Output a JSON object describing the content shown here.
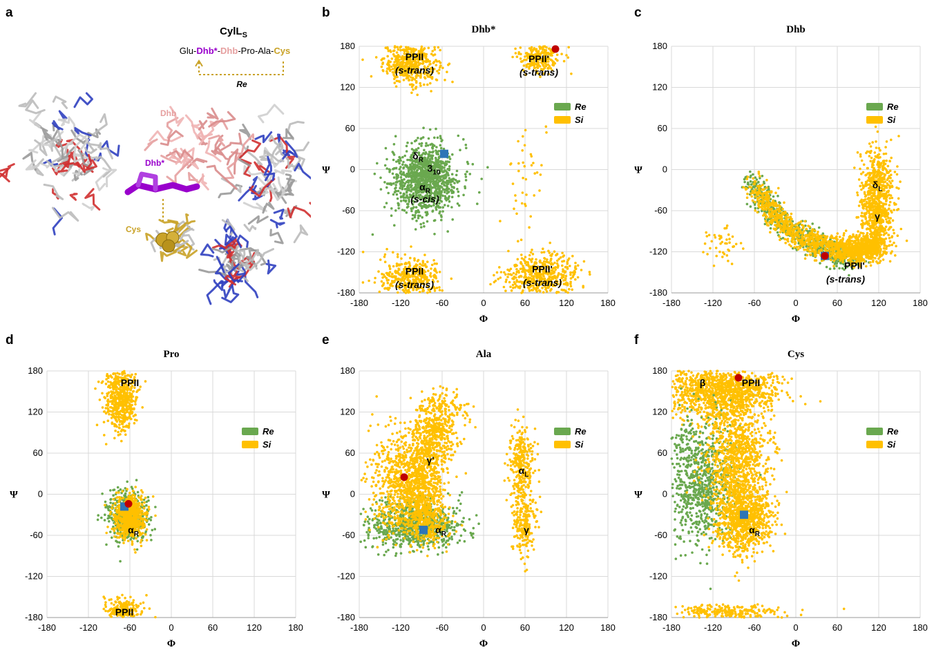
{
  "colors": {
    "re": "#6aa84f",
    "si": "#ffc000",
    "blue": "#2e75b6",
    "red": "#c00000",
    "grid": "#d9d9d9",
    "dhb_star": "#9900cc",
    "dhb": "#e6a0a0",
    "cys": "#c9a227"
  },
  "panel_a": {
    "letter": "a",
    "title": "CylL",
    "title_sub": "S",
    "seq_1": "Glu-",
    "seq_2": "Dhb*",
    "seq_3": "-",
    "seq_4": "Dhb",
    "seq_5": "-Pro-Ala-",
    "seq_6": "Cys",
    "re_label": "Re",
    "label_dhb": "Dhb",
    "label_dhb_star": "Dhb*",
    "label_cys": "Cys"
  },
  "chart_data": [
    {
      "id": "b",
      "letter": "b",
      "type": "scatter",
      "title": "Dhb*",
      "xlabel": "Φ",
      "ylabel": "Ψ",
      "xlim": [
        -180,
        180
      ],
      "ylim": [
        -180,
        180
      ],
      "ticks": [
        -180,
        -120,
        -60,
        0,
        60,
        120,
        180
      ],
      "grid": true,
      "legend": [
        {
          "name": "Re",
          "color": "#6aa84f"
        },
        {
          "name": "Si",
          "color": "#ffc000"
        }
      ],
      "legend_position": "right",
      "clusters": [
        {
          "series": "Si",
          "cx": -105,
          "cy": 155,
          "sx": 20,
          "sy": 15,
          "n": 450
        },
        {
          "series": "Si",
          "cx": 80,
          "cy": 165,
          "sx": 16,
          "sy": 12,
          "n": 230
        },
        {
          "series": "Si",
          "cx": -105,
          "cy": -160,
          "sx": 22,
          "sy": 15,
          "n": 380
        },
        {
          "series": "Si",
          "cx": 85,
          "cy": -155,
          "sx": 28,
          "sy": 16,
          "n": 480
        },
        {
          "series": "Si",
          "cx": 60,
          "cy": -10,
          "sx": 15,
          "sy": 45,
          "n": 40
        },
        {
          "series": "Re",
          "cx": -85,
          "cy": -15,
          "sx": 24,
          "sy": 26,
          "n": 1100
        }
      ],
      "markers": [
        {
          "shape": "square",
          "x": -57,
          "y": 23
        },
        {
          "shape": "circle",
          "x": 104,
          "y": 176
        }
      ],
      "labels": [
        {
          "text": "PPII",
          "x": -100,
          "y": 165
        },
        {
          "text": "(s-trans)",
          "x": -100,
          "y": 145,
          "italic": true
        },
        {
          "text": "PPII'",
          "x": 80,
          "y": 162
        },
        {
          "text": "(s-trans)",
          "x": 80,
          "y": 142,
          "italic": true
        },
        {
          "text": "δ",
          "sub": "R",
          "x": -95,
          "y": 20
        },
        {
          "text": "3",
          "sub": "10",
          "x": -72,
          "y": 2,
          "serif": true
        },
        {
          "text": "α",
          "sub": "R",
          "x": -85,
          "y": -25
        },
        {
          "text": "(s-cis)",
          "x": -85,
          "y": -43,
          "italic": true
        },
        {
          "text": "PPII",
          "x": -100,
          "y": -148
        },
        {
          "text": "(s-trans)",
          "x": -100,
          "y": -168,
          "italic": true
        },
        {
          "text": "PPII'",
          "x": 85,
          "y": -145
        },
        {
          "text": "(s-trans)",
          "x": 85,
          "y": -165,
          "italic": true
        }
      ]
    },
    {
      "id": "c",
      "letter": "c",
      "type": "scatter",
      "title": "Dhb",
      "xlabel": "Φ",
      "ylabel": "Ψ",
      "xlim": [
        -180,
        180
      ],
      "ylim": [
        -180,
        180
      ],
      "ticks": [
        -180,
        -120,
        -60,
        0,
        60,
        120,
        180
      ],
      "grid": true,
      "legend": [
        {
          "name": "Re",
          "color": "#6aa84f"
        },
        {
          "name": "Si",
          "color": "#ffc000"
        }
      ],
      "legend_position": "right",
      "clusters": [
        {
          "series": "Re",
          "arc": true,
          "pts": [
            [
              -65,
              -15
            ],
            [
              -40,
              -55
            ],
            [
              -10,
              -85
            ],
            [
              25,
              -108
            ],
            [
              60,
              -123
            ],
            [
              85,
              -130
            ]
          ],
          "spread": 9,
          "n": 650
        },
        {
          "series": "Si",
          "arc": true,
          "pts": [
            [
              -60,
              -20
            ],
            [
              -30,
              -65
            ],
            [
              0,
              -95
            ],
            [
              35,
              -112
            ],
            [
              70,
              -120
            ],
            [
              100,
              -118
            ],
            [
              120,
              -110
            ]
          ],
          "spread": 9,
          "n": 1000
        },
        {
          "series": "Si",
          "cx": 90,
          "cy": -115,
          "sx": 22,
          "sy": 10,
          "n": 350
        },
        {
          "series": "Si",
          "cx": 118,
          "cy": -30,
          "sx": 12,
          "sy": 32,
          "n": 500
        },
        {
          "series": "Si",
          "cx": 115,
          "cy": -75,
          "sx": 12,
          "sy": 22,
          "n": 300
        },
        {
          "series": "Si",
          "cx": -105,
          "cy": -110,
          "sx": 12,
          "sy": 15,
          "n": 45
        }
      ],
      "markers": [
        {
          "shape": "square",
          "x": 42,
          "y": -126
        },
        {
          "shape": "circle",
          "x": 42,
          "y": -126
        }
      ],
      "labels": [
        {
          "text": "δ",
          "sub": "L",
          "x": 118,
          "y": -22
        },
        {
          "text": "γ",
          "x": 118,
          "y": -68
        },
        {
          "text": "PPII'",
          "x": 85,
          "y": -140
        },
        {
          "text": "(s-trans)",
          "x": 72,
          "y": -160,
          "italic": true
        }
      ]
    },
    {
      "id": "d",
      "letter": "d",
      "type": "scatter",
      "title": "Pro",
      "xlabel": "Φ",
      "ylabel": "Ψ",
      "xlim": [
        -180,
        180
      ],
      "ylim": [
        -180,
        180
      ],
      "ticks": [
        -180,
        -120,
        -60,
        0,
        60,
        120,
        180
      ],
      "grid": true,
      "legend": [
        {
          "name": "Re",
          "color": "#6aa84f"
        },
        {
          "name": "Si",
          "color": "#ffc000"
        }
      ],
      "legend_position": "right",
      "clusters": [
        {
          "series": "Si",
          "cx": -72,
          "cy": 140,
          "sx": 11,
          "sy": 25,
          "n": 550
        },
        {
          "series": "Si",
          "cx": -68,
          "cy": -168,
          "sx": 13,
          "sy": 8,
          "n": 200
        },
        {
          "series": "Re",
          "cx": -63,
          "cy": -30,
          "sx": 15,
          "sy": 18,
          "n": 450
        },
        {
          "series": "Si",
          "cx": -60,
          "cy": -32,
          "sx": 11,
          "sy": 15,
          "n": 700
        }
      ],
      "markers": [
        {
          "shape": "square",
          "x": -68,
          "y": -18
        },
        {
          "shape": "circle",
          "x": -62,
          "y": -14
        }
      ],
      "labels": [
        {
          "text": "PPII",
          "x": -60,
          "y": 163
        },
        {
          "text": "α",
          "sub": "R",
          "x": -55,
          "y": -52
        },
        {
          "text": "PPII",
          "x": -68,
          "y": -172
        }
      ]
    },
    {
      "id": "e",
      "letter": "e",
      "type": "scatter",
      "title": "Ala",
      "xlabel": "Φ",
      "ylabel": "Ψ",
      "xlim": [
        -180,
        180
      ],
      "ylim": [
        -180,
        180
      ],
      "ticks": [
        -180,
        -120,
        -60,
        0,
        60,
        120,
        180
      ],
      "grid": true,
      "legend": [
        {
          "name": "Re",
          "color": "#6aa84f"
        },
        {
          "name": "Si",
          "color": "#ffc000"
        }
      ],
      "legend_position": "right",
      "clusters": [
        {
          "series": "Re",
          "cx": -100,
          "cy": -45,
          "sx": 32,
          "sy": 17,
          "n": 800
        },
        {
          "series": "Si",
          "arc": true,
          "pts": [
            [
              -60,
              130
            ],
            [
              -70,
              90
            ],
            [
              -85,
              50
            ],
            [
              -95,
              10
            ],
            [
              -90,
              -25
            ],
            [
              -80,
              -55
            ]
          ],
          "spread": 18,
          "n": 1500
        },
        {
          "series": "Si",
          "cx": -130,
          "cy": 20,
          "sx": 18,
          "sy": 40,
          "n": 400
        },
        {
          "series": "Si",
          "cx": 55,
          "cy": 45,
          "sx": 9,
          "sy": 25,
          "n": 280
        },
        {
          "series": "Si",
          "cx": 60,
          "cy": -45,
          "sx": 8,
          "sy": 25,
          "n": 220
        }
      ],
      "markers": [
        {
          "shape": "square",
          "x": -87,
          "y": -52
        },
        {
          "shape": "circle",
          "x": -115,
          "y": 25
        }
      ],
      "labels": [
        {
          "text": "γ'",
          "x": -77,
          "y": 50
        },
        {
          "text": "α",
          "sub": "L",
          "x": 58,
          "y": 35
        },
        {
          "text": "α",
          "sub": "R",
          "x": -62,
          "y": -52
        },
        {
          "text": "γ",
          "x": 62,
          "y": -52
        }
      ]
    },
    {
      "id": "f",
      "letter": "f",
      "type": "scatter",
      "title": "Cys",
      "xlabel": "Φ",
      "ylabel": "Ψ",
      "xlim": [
        -180,
        180
      ],
      "ylim": [
        -180,
        180
      ],
      "ticks": [
        -180,
        -120,
        -60,
        0,
        60,
        120,
        180
      ],
      "grid": true,
      "legend": [
        {
          "name": "Re",
          "color": "#6aa84f"
        },
        {
          "name": "Si",
          "color": "#ffc000"
        }
      ],
      "legend_position": "right",
      "clusters": [
        {
          "series": "Si",
          "cx": -110,
          "cy": 150,
          "sx": 40,
          "sy": 20,
          "n": 1200
        },
        {
          "series": "Re",
          "cx": -140,
          "cy": 20,
          "sx": 22,
          "sy": 45,
          "n": 800
        },
        {
          "series": "Si",
          "cx": -75,
          "cy": -35,
          "sx": 20,
          "sy": 25,
          "n": 900
        },
        {
          "series": "Si",
          "cx": -85,
          "cy": 60,
          "sx": 22,
          "sy": 40,
          "n": 900
        },
        {
          "series": "Si",
          "cx": -100,
          "cy": -172,
          "sx": 40,
          "sy": 5,
          "n": 250
        }
      ],
      "markers": [
        {
          "shape": "square",
          "x": -75,
          "y": -30
        },
        {
          "shape": "circle",
          "x": -83,
          "y": 170
        }
      ],
      "labels": [
        {
          "text": "β",
          "x": -135,
          "y": 163
        },
        {
          "text": "PPII",
          "x": -65,
          "y": 163
        },
        {
          "text": "α",
          "sub": "R",
          "x": -60,
          "y": -52
        }
      ]
    }
  ]
}
